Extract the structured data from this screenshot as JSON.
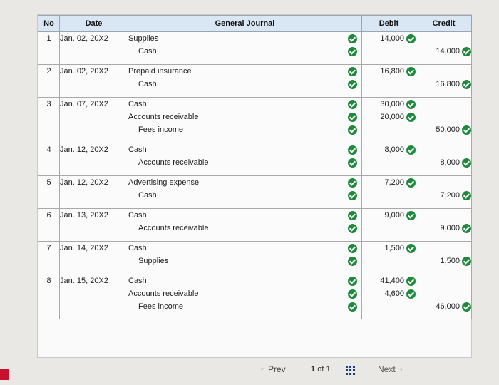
{
  "header": {
    "no": "No",
    "date": "Date",
    "journal": "General Journal",
    "debit": "Debit",
    "credit": "Credit"
  },
  "entries": [
    {
      "no": "1",
      "date": "Jan. 02, 20X2",
      "lines": [
        {
          "account": "Supplies",
          "indent": false,
          "debit": "14,000",
          "credit": ""
        },
        {
          "account": "Cash",
          "indent": true,
          "debit": "",
          "credit": "14,000"
        }
      ]
    },
    {
      "no": "2",
      "date": "Jan. 02, 20X2",
      "lines": [
        {
          "account": "Prepaid insurance",
          "indent": false,
          "debit": "16,800",
          "credit": ""
        },
        {
          "account": "Cash",
          "indent": true,
          "debit": "",
          "credit": "16,800"
        }
      ]
    },
    {
      "no": "3",
      "date": "Jan. 07, 20X2",
      "lines": [
        {
          "account": "Cash",
          "indent": false,
          "debit": "30,000",
          "credit": ""
        },
        {
          "account": "Accounts receivable",
          "indent": false,
          "debit": "20,000",
          "credit": ""
        },
        {
          "account": "Fees income",
          "indent": true,
          "debit": "",
          "credit": "50,000"
        }
      ]
    },
    {
      "no": "4",
      "date": "Jan. 12, 20X2",
      "lines": [
        {
          "account": "Cash",
          "indent": false,
          "debit": "8,000",
          "credit": ""
        },
        {
          "account": "Accounts receivable",
          "indent": true,
          "debit": "",
          "credit": "8,000"
        }
      ]
    },
    {
      "no": "5",
      "date": "Jan. 12, 20X2",
      "lines": [
        {
          "account": "Advertising expense",
          "indent": false,
          "debit": "7,200",
          "credit": ""
        },
        {
          "account": "Cash",
          "indent": true,
          "debit": "",
          "credit": "7,200"
        }
      ]
    },
    {
      "no": "6",
      "date": "Jan. 13, 20X2",
      "lines": [
        {
          "account": "Cash",
          "indent": false,
          "debit": "9,000",
          "credit": ""
        },
        {
          "account": "Accounts receivable",
          "indent": true,
          "debit": "",
          "credit": "9,000"
        }
      ]
    },
    {
      "no": "7",
      "date": "Jan. 14, 20X2",
      "lines": [
        {
          "account": "Cash",
          "indent": false,
          "debit": "1,500",
          "credit": ""
        },
        {
          "account": "Supplies",
          "indent": true,
          "debit": "",
          "credit": "1,500"
        }
      ]
    },
    {
      "no": "8",
      "date": "Jan. 15, 20X2",
      "lines": [
        {
          "account": "Cash",
          "indent": false,
          "debit": "41,400",
          "credit": ""
        },
        {
          "account": "Accounts receivable",
          "indent": false,
          "debit": "4,600",
          "credit": ""
        },
        {
          "account": "Fees income",
          "indent": true,
          "debit": "",
          "credit": "46,000"
        }
      ]
    }
  ],
  "pagination": {
    "prev_label": "Prev",
    "current": "1",
    "of_label": "of",
    "total": "1",
    "next_label": "Next",
    "grid_icon": "grid-icon"
  },
  "colors": {
    "header_bg": "#d9e6f3",
    "check_green": "#1e8a3c"
  }
}
